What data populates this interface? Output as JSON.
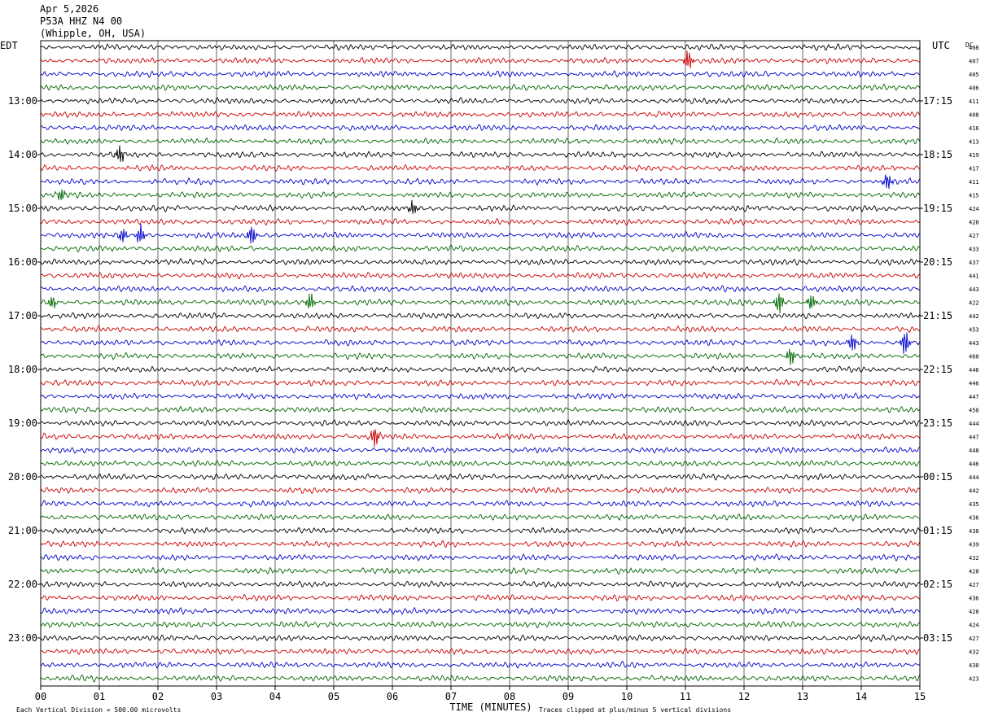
{
  "header": {
    "date": "Apr 5,2026",
    "station": "P53A HHZ N4 00",
    "location": "(Whipple, OH, USA)"
  },
  "left_tz": "EDT",
  "right_tz": "UTC",
  "dc_label": "DC",
  "footer": {
    "scale": "Each Vertical Division =  500.00 microvolts",
    "clip": "Traces clipped at plus/minus 5 vertical divisions"
  },
  "chart_data": {
    "type": "line",
    "subtype": "helicorder",
    "xlabel": "TIME (MINUTES)",
    "x_ticks": [
      "00",
      "01",
      "02",
      "03",
      "04",
      "05",
      "06",
      "07",
      "08",
      "09",
      "10",
      "11",
      "12",
      "13",
      "14",
      "15"
    ],
    "xlim": [
      0,
      15
    ],
    "trace_minutes": 15,
    "trace_colors": [
      "#000000",
      "#cc0000",
      "#0000cc",
      "#006600"
    ],
    "left_hour_labels": [
      {
        "trace": 4,
        "label": "13:00"
      },
      {
        "trace": 8,
        "label": "14:00"
      },
      {
        "trace": 12,
        "label": "15:00"
      },
      {
        "trace": 16,
        "label": "16:00"
      },
      {
        "trace": 20,
        "label": "17:00"
      },
      {
        "trace": 24,
        "label": "18:00"
      },
      {
        "trace": 28,
        "label": "19:00"
      },
      {
        "trace": 32,
        "label": "20:00"
      },
      {
        "trace": 36,
        "label": "21:00"
      },
      {
        "trace": 40,
        "label": "22:00"
      },
      {
        "trace": 44,
        "label": "23:00"
      }
    ],
    "right_hour_labels": [
      {
        "trace": 4,
        "label": "17:15"
      },
      {
        "trace": 8,
        "label": "18:15"
      },
      {
        "trace": 12,
        "label": "19:15"
      },
      {
        "trace": 16,
        "label": "20:15"
      },
      {
        "trace": 20,
        "label": "21:15"
      },
      {
        "trace": 24,
        "label": "22:15"
      },
      {
        "trace": 28,
        "label": "23:15"
      },
      {
        "trace": 32,
        "label": "00:15"
      },
      {
        "trace": 36,
        "label": "01:15"
      },
      {
        "trace": 40,
        "label": "02:15"
      },
      {
        "trace": 44,
        "label": "03:15"
      }
    ],
    "dc_offsets": [
      "408",
      "407",
      "405",
      "406",
      "411",
      "408",
      "416",
      "413",
      "419",
      "417",
      "411",
      "415",
      "424",
      "428",
      "427",
      "433",
      "437",
      "441",
      "443",
      "422",
      "442",
      "453",
      "443",
      "460",
      "446",
      "446",
      "447",
      "450",
      "444",
      "447",
      "448",
      "446",
      "444",
      "442",
      "435",
      "436",
      "438",
      "439",
      "432",
      "428",
      "427",
      "436",
      "428",
      "424",
      "427",
      "432",
      "430",
      "423"
    ],
    "events": [
      {
        "trace": 1,
        "minute": 11.05,
        "amp": 12
      },
      {
        "trace": 8,
        "minute": 1.35,
        "amp": 11
      },
      {
        "trace": 10,
        "minute": 14.45,
        "amp": 10
      },
      {
        "trace": 11,
        "minute": 0.35,
        "amp": 8
      },
      {
        "trace": 12,
        "minute": 6.35,
        "amp": 9
      },
      {
        "trace": 14,
        "minute": 1.4,
        "amp": 9
      },
      {
        "trace": 14,
        "minute": 1.7,
        "amp": 12
      },
      {
        "trace": 14,
        "minute": 3.6,
        "amp": 12
      },
      {
        "trace": 19,
        "minute": 0.2,
        "amp": 8
      },
      {
        "trace": 19,
        "minute": 4.6,
        "amp": 11
      },
      {
        "trace": 19,
        "minute": 12.6,
        "amp": 14
      },
      {
        "trace": 19,
        "minute": 13.15,
        "amp": 10
      },
      {
        "trace": 22,
        "minute": 13.85,
        "amp": 11
      },
      {
        "trace": 22,
        "minute": 14.75,
        "amp": 16
      },
      {
        "trace": 23,
        "minute": 12.8,
        "amp": 11
      },
      {
        "trace": 29,
        "minute": 5.7,
        "amp": 13
      }
    ]
  }
}
